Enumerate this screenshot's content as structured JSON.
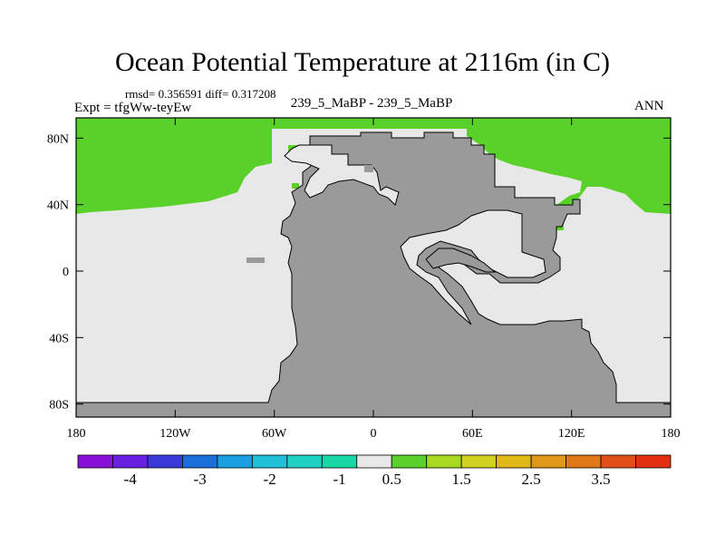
{
  "header": {
    "title": "Ocean Potential Temperature at 2116m (in C)",
    "stats": "rmsd= 0.356591 diff= 0.317208",
    "experiment": "Expt = tfgWw-teyEw",
    "comparison": "239_5_MaBP - 239_5_MaBP",
    "season": "ANN"
  },
  "map": {
    "lat_ticks": [
      "80N",
      "40N",
      "0",
      "40S",
      "80S"
    ],
    "lon_ticks": [
      "180",
      "120W",
      "60W",
      "0",
      "60E",
      "120E",
      "180"
    ],
    "colors": {
      "land": "#9a9a9a",
      "ocean_near_zero": "#e8e8e8",
      "ocean_positive": "#5ad12a",
      "coast": "#000000"
    }
  },
  "colorbar": {
    "colors": [
      "#8a10d8",
      "#6a20e0",
      "#3a3ad8",
      "#1a70d8",
      "#1aa0e0",
      "#20c0d8",
      "#20d0c0",
      "#18d8a8",
      "#e8e8e8",
      "#5ad12a",
      "#a8d820",
      "#d0d020",
      "#e0b818",
      "#e09818",
      "#e07818",
      "#e05018",
      "#e03010"
    ],
    "labels": [
      "-4",
      "-3",
      "-2",
      "-1",
      "0.5",
      "1.5",
      "2.5",
      "3.5"
    ]
  }
}
